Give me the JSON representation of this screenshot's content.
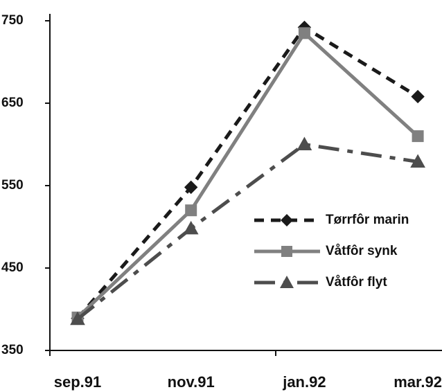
{
  "chart_data": {
    "type": "line",
    "categories": [
      "sep.91",
      "nov.91",
      "jan.92",
      "mar.92"
    ],
    "series": [
      {
        "name": "Tørrfôr marin",
        "color": "#1a1a1a",
        "linestyle": "dashed",
        "marker": "diamond",
        "values": [
          389,
          548,
          742,
          658
        ]
      },
      {
        "name": "Våtfôr synk",
        "color": "#808080",
        "linestyle": "solid",
        "marker": "square",
        "values": [
          390,
          520,
          735,
          610
        ]
      },
      {
        "name": "Våtfôr flyt",
        "color": "#4d4d4d",
        "linestyle": "longdash",
        "marker": "triangle",
        "values": [
          388,
          498,
          600,
          579
        ]
      }
    ],
    "ylim": [
      350,
      750
    ],
    "yticks": [
      350,
      450,
      550,
      650,
      750
    ],
    "grid": false,
    "legend": "right"
  }
}
